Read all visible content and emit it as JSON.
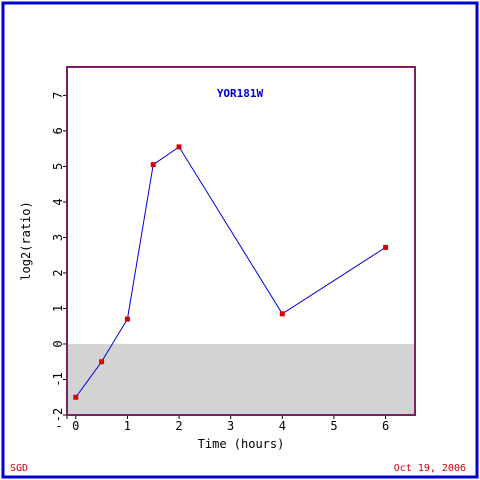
{
  "chart_data": {
    "type": "line",
    "title": "YOR181W",
    "x_label": "Time (hours)",
    "y_label": "log2(ratio)",
    "x": [
      0,
      0.5,
      1,
      1.5,
      2,
      4,
      6
    ],
    "series": [
      {
        "color": "#0000dd",
        "marker_color": "#dd0000",
        "values": [
          -1.5,
          -0.5,
          0.7,
          5.05,
          5.55,
          0.85,
          2.72
        ]
      }
    ],
    "xlim": [
      -0.17,
      6.57
    ],
    "ylim": [
      -2,
      7.8
    ],
    "xticks": [
      {
        "value": -0.17,
        "label": "-"
      },
      0,
      1,
      2,
      3,
      4,
      5,
      6
    ],
    "yticks": [
      -2,
      -1,
      0,
      1,
      2,
      3,
      4,
      5,
      6,
      7
    ],
    "footer_left": "SGD",
    "footer_right": "Oct 19, 2006"
  }
}
